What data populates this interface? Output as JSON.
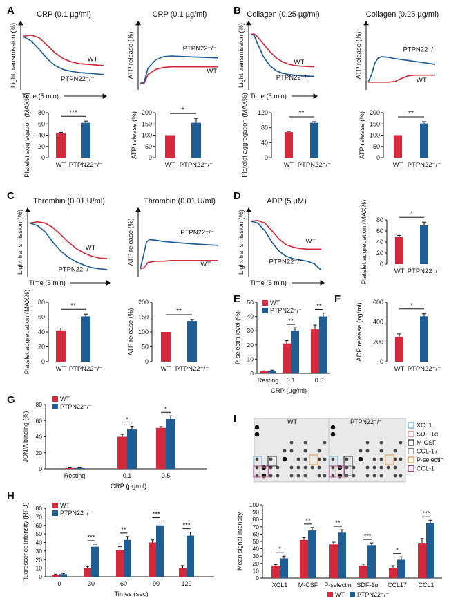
{
  "colors": {
    "wt": "#d3293b",
    "ko": "#1f5e95",
    "axis": "#111111"
  },
  "series_names": {
    "wt": "WT",
    "ko": "PTPN22⁻/⁻"
  },
  "trace_axes": {
    "light_y": "Light transmission (%)",
    "atp_y": "ATP release (%)",
    "x": "Time (5 min)"
  },
  "panel_letters": [
    "A",
    "B",
    "C",
    "D",
    "E",
    "F",
    "G",
    "H",
    "I"
  ],
  "chart_data": [
    {
      "id": "A1",
      "type": "line",
      "title": "CRP (0.1 µg/ml)",
      "ylabel": "Light transmission (%)",
      "xlabel": "Time (5 min)",
      "curve_labels": {
        "wt": "WT",
        "ko": "PTPN22⁻/⁻"
      },
      "series": [
        {
          "name": "WT",
          "x": [
            0,
            0.1,
            0.2,
            0.3,
            0.4,
            0.5,
            0.6,
            0.7,
            0.8,
            0.9,
            1
          ],
          "values": [
            82,
            84,
            80,
            68,
            56,
            47,
            42,
            39,
            38,
            37,
            36
          ]
        },
        {
          "name": "PTPN22⁻/⁻",
          "x": [
            0,
            0.1,
            0.2,
            0.3,
            0.4,
            0.5,
            0.6,
            0.7,
            0.8,
            0.9,
            1
          ],
          "values": [
            82,
            75,
            62,
            47,
            36,
            30,
            27,
            25,
            24,
            23,
            22
          ]
        }
      ]
    },
    {
      "id": "A2",
      "type": "line",
      "title": "CRP (0.1 µg/ml)",
      "ylabel": "ATP release (%)",
      "xlabel": "",
      "curve_labels": {
        "wt": "WT",
        "ko": "PTPN22⁻/⁻"
      },
      "series": [
        {
          "name": "WT",
          "x": [
            0,
            0.05,
            0.1,
            0.2,
            0.3,
            0.4,
            0.6,
            0.8,
            1
          ],
          "values": [
            8,
            8,
            22,
            30,
            33,
            34,
            34,
            34,
            34
          ]
        },
        {
          "name": "PTPN22⁻/⁻",
          "x": [
            0,
            0.05,
            0.1,
            0.2,
            0.3,
            0.4,
            0.6,
            0.8,
            1
          ],
          "values": [
            8,
            10,
            32,
            45,
            50,
            51,
            50,
            49,
            48
          ]
        }
      ]
    },
    {
      "id": "B1",
      "type": "line",
      "title": "Collagen (0.25 µg/ml)",
      "ylabel": "Light transmission (%)",
      "xlabel": "Time (5 min)",
      "curve_labels": {
        "wt": "WT",
        "ko": "PTPN22⁻/⁻"
      },
      "series": [
        {
          "name": "WT",
          "x": [
            0,
            0.05,
            0.1,
            0.2,
            0.3,
            0.4,
            0.5,
            0.6,
            0.7,
            0.8,
            1
          ],
          "values": [
            85,
            86,
            82,
            70,
            58,
            48,
            42,
            38,
            36,
            35,
            34
          ]
        },
        {
          "name": "PTPN22⁻/⁻",
          "x": [
            0,
            0.05,
            0.1,
            0.2,
            0.3,
            0.4,
            0.5,
            0.6,
            0.7,
            0.8,
            1
          ],
          "values": [
            85,
            84,
            72,
            50,
            36,
            28,
            24,
            22,
            21,
            20,
            19
          ]
        }
      ]
    },
    {
      "id": "B2",
      "type": "line",
      "title": "Collagen (0.25 µg/ml)",
      "ylabel": "ATP release (%)",
      "xlabel": "",
      "curve_labels": {
        "wt": "WT",
        "ko": "PTPN22⁻/⁻"
      },
      "series": [
        {
          "name": "WT",
          "x": [
            0,
            0.1,
            0.2,
            0.3,
            0.4,
            0.5,
            0.6,
            0.7,
            0.8,
            1
          ],
          "values": [
            10,
            10,
            10,
            10,
            11,
            16,
            20,
            21,
            21,
            21
          ]
        },
        {
          "name": "PTPN22⁻/⁻",
          "x": [
            0,
            0.05,
            0.1,
            0.15,
            0.2,
            0.3,
            0.4,
            0.6,
            0.8,
            1
          ],
          "values": [
            10,
            22,
            40,
            48,
            50,
            49,
            47,
            44,
            41,
            38
          ]
        }
      ]
    },
    {
      "id": "C1",
      "type": "line",
      "title": "Thrombin (0.01 U/ml)",
      "ylabel": "Light transmission (%)",
      "xlabel": "Time (5 min)",
      "curve_labels": {
        "wt": "WT",
        "ko": "PTPN22⁻/⁻"
      },
      "series": [
        {
          "name": "WT",
          "x": [
            0,
            0.1,
            0.2,
            0.3,
            0.4,
            0.5,
            0.6,
            0.7,
            0.8,
            0.9,
            1
          ],
          "values": [
            82,
            84,
            82,
            75,
            64,
            52,
            42,
            35,
            30,
            27,
            26
          ]
        },
        {
          "name": "PTPN22⁻/⁻",
          "x": [
            0,
            0.1,
            0.2,
            0.3,
            0.4,
            0.5,
            0.6,
            0.7,
            0.8,
            0.9,
            1
          ],
          "values": [
            82,
            78,
            68,
            52,
            38,
            28,
            21,
            16,
            12,
            10,
            9
          ]
        }
      ]
    },
    {
      "id": "C2",
      "type": "line",
      "title": "Thrombin (0.01 U/ml)",
      "ylabel": "ATP release (%)",
      "xlabel": "",
      "curve_labels": {
        "wt": "WT",
        "ko": "PTPN22⁻/⁻"
      },
      "series": [
        {
          "name": "WT",
          "x": [
            0,
            0.05,
            0.1,
            0.2,
            0.3,
            0.4,
            0.6,
            0.8,
            1
          ],
          "values": [
            10,
            12,
            20,
            22,
            22,
            23,
            23,
            23,
            23
          ]
        },
        {
          "name": "PTPN22⁻/⁻",
          "x": [
            0,
            0.04,
            0.08,
            0.12,
            0.2,
            0.3,
            0.5,
            0.7,
            1
          ],
          "values": [
            10,
            30,
            52,
            56,
            55,
            53,
            51,
            49,
            47
          ]
        }
      ]
    },
    {
      "id": "D1",
      "type": "line",
      "title": "ADP (5 µM)",
      "ylabel": "Light transmission (%)",
      "xlabel": "Time (5 min)",
      "curve_labels": {
        "wt": "WT",
        "ko": "PTPN22⁻/⁻"
      },
      "series": [
        {
          "name": "WT",
          "x": [
            0,
            0.1,
            0.2,
            0.3,
            0.4,
            0.5,
            0.6,
            0.7,
            0.8,
            0.9,
            1
          ],
          "values": [
            85,
            86,
            82,
            70,
            57,
            48,
            44,
            42,
            41,
            41,
            41
          ]
        },
        {
          "name": "PTPN22⁻/⁻",
          "x": [
            0,
            0.1,
            0.2,
            0.3,
            0.4,
            0.5,
            0.6,
            0.7,
            0.8,
            0.9,
            1
          ],
          "values": [
            85,
            82,
            70,
            52,
            38,
            30,
            26,
            24,
            22,
            18,
            8
          ]
        }
      ]
    },
    {
      "id": "A3",
      "type": "bar",
      "ylabel": "Platelet aggregation (MAX%)",
      "categories": [
        "WT",
        "PTPN22⁻/⁻"
      ],
      "values": [
        43,
        62
      ],
      "errors": [
        2,
        3
      ],
      "ylim": [
        0,
        80
      ],
      "yticks": [
        0,
        20,
        40,
        60,
        80
      ],
      "sig": [
        "***"
      ]
    },
    {
      "id": "A4",
      "type": "bar",
      "ylabel": "ATP release (%)",
      "categories": [
        "WT",
        "PTPN22⁻/⁻"
      ],
      "values": [
        100,
        155
      ],
      "errors": [
        0,
        20
      ],
      "ylim": [
        0,
        200
      ],
      "yticks": [
        0,
        50,
        100,
        150,
        200
      ],
      "sig": [
        "*"
      ]
    },
    {
      "id": "B3",
      "type": "bar",
      "ylabel": "Platelet aggregation (MAX%)",
      "categories": [
        "WT",
        "PTPN22⁻/⁻"
      ],
      "values": [
        68,
        93
      ],
      "errors": [
        2,
        3
      ],
      "ylim": [
        0,
        120
      ],
      "yticks": [
        0,
        40,
        80,
        120
      ],
      "sig": [
        "**"
      ]
    },
    {
      "id": "B4",
      "type": "bar",
      "ylabel": "ATP release (%)",
      "categories": [
        "WT",
        "PTPN22⁻/⁻"
      ],
      "values": [
        100,
        152
      ],
      "errors": [
        0,
        8
      ],
      "ylim": [
        0,
        200
      ],
      "yticks": [
        0,
        50,
        100,
        150,
        200
      ],
      "sig": [
        "**"
      ]
    },
    {
      "id": "C3",
      "type": "bar",
      "ylabel": "Platelet aggregation (MAX%)",
      "categories": [
        "WT",
        "PTPN22⁻/⁻"
      ],
      "values": [
        42,
        61
      ],
      "errors": [
        3,
        3
      ],
      "ylim": [
        0,
        80
      ],
      "yticks": [
        0,
        20,
        40,
        60,
        80
      ],
      "sig": [
        "**"
      ]
    },
    {
      "id": "C4",
      "type": "bar",
      "ylabel": "ATP release (%)",
      "categories": [
        "WT",
        "PTPN22⁻/⁻"
      ],
      "values": [
        100,
        137
      ],
      "errors": [
        0,
        5
      ],
      "ylim": [
        0,
        200
      ],
      "yticks": [
        0,
        50,
        100,
        150,
        200
      ],
      "sig": [
        "**"
      ]
    },
    {
      "id": "D2",
      "type": "bar",
      "ylabel": "Platelet aggregation (MAX%)",
      "categories": [
        "WT",
        "PTPN22⁻/⁻"
      ],
      "values": [
        49,
        70
      ],
      "errors": [
        3,
        6
      ],
      "ylim": [
        0,
        80
      ],
      "yticks": [
        0,
        20,
        40,
        60,
        80
      ],
      "sig": [
        "*"
      ]
    },
    {
      "id": "F",
      "type": "bar",
      "ylabel": "ADP release (ng/ml)",
      "categories": [
        "WT",
        "PTPN22⁻/⁻"
      ],
      "values": [
        250,
        458
      ],
      "errors": [
        30,
        25
      ],
      "ylim": [
        0,
        600
      ],
      "yticks": [
        0,
        200,
        400,
        600
      ],
      "sig": [
        "*"
      ]
    },
    {
      "id": "E",
      "type": "grouped_bar",
      "ylabel": "P-selectin level (%)",
      "xlabel": "CRP (µg/ml)",
      "categories": [
        "Resting",
        "0.1",
        "0.5"
      ],
      "series": [
        {
          "name": "WT",
          "values": [
            1.5,
            21,
            31
          ],
          "errors": [
            0.3,
            2,
            3
          ]
        },
        {
          "name": "PTPN22⁻/⁻",
          "values": [
            2,
            30,
            40
          ],
          "errors": [
            0.3,
            2,
            2.5
          ]
        }
      ],
      "ylim": [
        0,
        50
      ],
      "yticks": [
        0,
        10,
        20,
        30,
        40,
        50
      ],
      "sig": [
        "",
        "**",
        "**"
      ]
    },
    {
      "id": "G",
      "type": "grouped_bar",
      "ylabel": "JON/A binding (%)",
      "xlabel": "CRP (µg/ml)",
      "categories": [
        "Resting",
        "0.1",
        "0.5"
      ],
      "series": [
        {
          "name": "WT",
          "values": [
            1,
            40,
            51
          ],
          "errors": [
            0.3,
            3,
            1.5
          ]
        },
        {
          "name": "PTPN22⁻/⁻",
          "values": [
            1,
            49,
            62
          ],
          "errors": [
            0.3,
            4,
            4
          ]
        }
      ],
      "ylim": [
        0,
        80
      ],
      "yticks": [
        0,
        20,
        40,
        60,
        80
      ],
      "sig": [
        "",
        "*",
        "*"
      ]
    },
    {
      "id": "H",
      "type": "grouped_bar",
      "ylabel": "Fluorescence intensity (RFU)",
      "xlabel": "Times (sec)",
      "categories": [
        "0",
        "30",
        "60",
        "90",
        "120"
      ],
      "series": [
        {
          "name": "WT",
          "values": [
            2,
            10,
            31,
            40,
            10
          ],
          "errors": [
            1,
            2,
            4,
            3,
            3
          ]
        },
        {
          "name": "PTPN22⁻/⁻",
          "values": [
            3,
            35,
            43,
            60,
            48
          ],
          "errors": [
            1,
            3,
            4,
            5,
            4
          ]
        }
      ],
      "ylim": [
        0,
        80
      ],
      "yticks": [
        0,
        10,
        20,
        30,
        40,
        50,
        60,
        70,
        80
      ],
      "sig": [
        "",
        "***",
        "**",
        "***",
        "***"
      ]
    },
    {
      "id": "I",
      "type": "grouped_bar",
      "ylabel": "Mean signal intensity",
      "xlabel": "",
      "categories": [
        "XCL1",
        "M-CSF",
        "P-selectin",
        "SDF-1α",
        "CCL17",
        "CCL1"
      ],
      "series": [
        {
          "name": "WT",
          "values": [
            17,
            52,
            46,
            17,
            14,
            48
          ],
          "errors": [
            1.5,
            3,
            3,
            2,
            3,
            6
          ]
        },
        {
          "name": "PTPN22⁻/⁻",
          "values": [
            27,
            65,
            62,
            45,
            25,
            75
          ],
          "errors": [
            3,
            4,
            4,
            3,
            4,
            4
          ]
        }
      ],
      "ylim": [
        0,
        100
      ],
      "yticks": [
        0,
        10,
        20,
        30,
        40,
        50,
        60,
        70,
        80,
        90,
        100
      ],
      "sig": [
        "*",
        "**",
        "**",
        "***",
        "*",
        "***"
      ],
      "legend_position": "bottom"
    }
  ],
  "array_panel": {
    "left_title": "WT",
    "right_title": "PTPN22⁻/⁻",
    "legend": [
      {
        "label": "XCL1",
        "color": "#5aa9d6"
      },
      {
        "label": "SDF-1α",
        "color": "#e59aa3"
      },
      {
        "label": "M-CSF",
        "color": "#222222"
      },
      {
        "label": "CCL-17",
        "color": "#777777"
      },
      {
        "label": "P-selectin",
        "color": "#e39a3c"
      },
      {
        "label": "CCL-1",
        "color": "#b03c8f"
      }
    ]
  }
}
